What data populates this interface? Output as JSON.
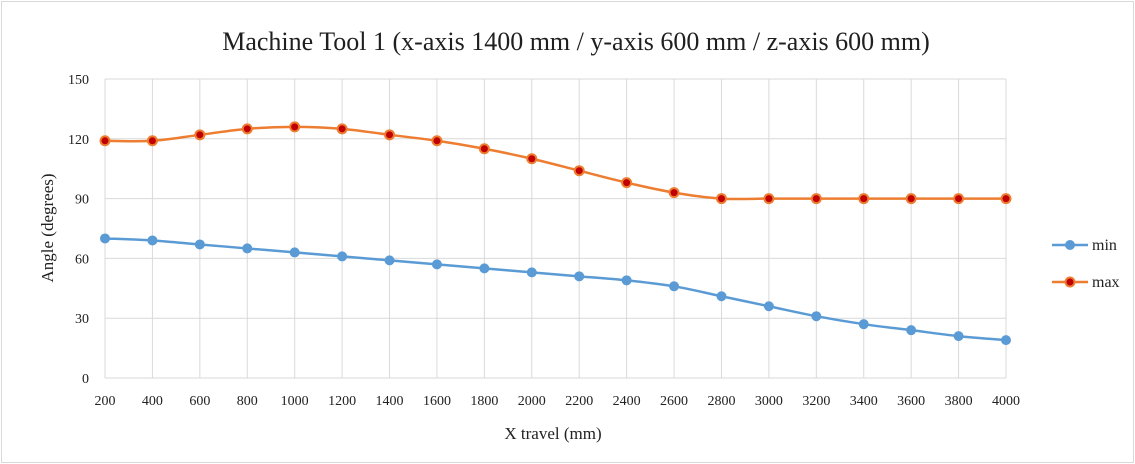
{
  "chart_data": {
    "type": "line",
    "title": "Machine Tool 1 (x-axis 1400 mm / y-axis 600 mm / z-axis 600 mm)",
    "xlabel": "X travel (mm)",
    "ylabel": "Angle (degrees)",
    "x": [
      200,
      400,
      600,
      800,
      1000,
      1200,
      1400,
      1600,
      1800,
      2000,
      2200,
      2400,
      2600,
      2800,
      3000,
      3200,
      3400,
      3600,
      3800,
      4000
    ],
    "ylim": [
      0,
      150
    ],
    "yticks": [
      0,
      30,
      60,
      90,
      120,
      150
    ],
    "grid": true,
    "legend": "right",
    "series": [
      {
        "name": "min",
        "color": "#5b9bd5",
        "values": [
          70,
          69,
          67,
          65,
          63,
          61,
          59,
          57,
          55,
          53,
          51,
          49,
          46,
          41,
          36,
          31,
          27,
          24,
          21,
          19
        ]
      },
      {
        "name": "max",
        "color": "#ed7d31",
        "marker_fill": "#c00000",
        "values": [
          119,
          119,
          122,
          125,
          126,
          125,
          122,
          119,
          115,
          110,
          104,
          98,
          93,
          90,
          90,
          90,
          90,
          90,
          90,
          90
        ]
      }
    ]
  }
}
